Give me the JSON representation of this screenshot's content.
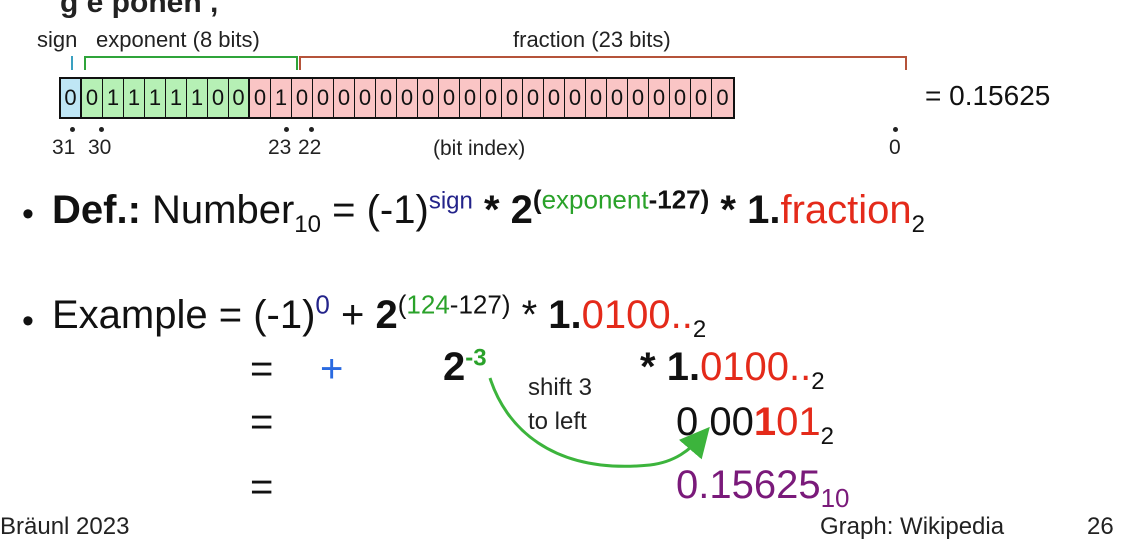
{
  "header": {
    "partial_title": "g  e ponen  ,"
  },
  "bitfield": {
    "labels": {
      "sign": "sign",
      "exponent": "exponent (8 bits)",
      "fraction": "fraction (23 bits)"
    },
    "bits": [
      "0",
      "0",
      "1",
      "1",
      "1",
      "1",
      "1",
      "0",
      "0",
      "0",
      "1",
      "0",
      "0",
      "0",
      "0",
      "0",
      "0",
      "0",
      "0",
      "0",
      "0",
      "0",
      "0",
      "0",
      "0",
      "0",
      "0",
      "0",
      "0",
      "0",
      "0",
      "0"
    ],
    "result": "= 0.15625",
    "index_labels": {
      "b31": "31",
      "b30": "30",
      "b23": "23",
      "b22": "22",
      "b0": "0",
      "caption": "(bit index)"
    },
    "colors": {
      "sign": "#bfe6f5",
      "exponent": "#b6f0b5",
      "fraction": "#fac5c5"
    }
  },
  "definition": {
    "bullet": "•",
    "def_label": "Def.:",
    "number": "Number",
    "sub10": "10",
    "eq": "=",
    "neg1": "(-1)",
    "sign_sup": "sign",
    "star1": "*",
    "two": "2",
    "exp_open": "(",
    "exp_word": "exponent",
    "exp_rest": "-127)",
    "star2": "*",
    "one": "1.",
    "fraction": "fraction",
    "sub2": "2"
  },
  "example": {
    "bullet": "•",
    "line1": {
      "label": "Example = (-1)",
      "sup0": "0",
      "plus": " + ",
      "two": "2",
      "exp_open": "(",
      "exp_green": "124",
      "exp_rest": "-127)",
      "star": " * ",
      "one": "1.",
      "digits": "0100..",
      "sub": "2"
    },
    "line2": {
      "eq": "=",
      "plus": "+",
      "two": "2",
      "exp": "-3",
      "star": "*",
      "one": "1.",
      "digits": "0100..",
      "sub": "2"
    },
    "line3": {
      "eq": "=",
      "p1": "0.00",
      "p2": "1",
      "p3": "01",
      "sub": "2"
    },
    "line4": {
      "eq": "=",
      "value": "0.15625",
      "sub": "10"
    },
    "shift_note": {
      "line1": "shift 3",
      "line2": "to left"
    }
  },
  "footer": {
    "left": "Bräunl 2023",
    "right": "Graph: Wikipedia",
    "page": "26"
  }
}
